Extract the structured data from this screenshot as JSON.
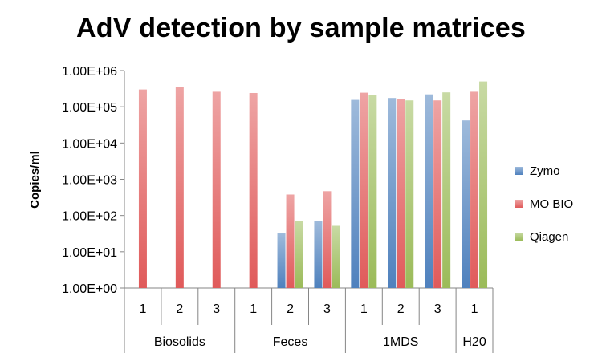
{
  "chart_data": {
    "type": "bar",
    "title": "AdV detection by sample matrices",
    "ylabel": "Copies/ml",
    "xlabel": "",
    "yscale": "log",
    "ylim": [
      1,
      1000000
    ],
    "yticks": [
      {
        "value": 1,
        "label": "1.00E+00"
      },
      {
        "value": 10,
        "label": "1.00E+01"
      },
      {
        "value": 100,
        "label": "1.00E+02"
      },
      {
        "value": 1000,
        "label": "1.00E+03"
      },
      {
        "value": 10000,
        "label": "1.00E+04"
      },
      {
        "value": 100000,
        "label": "1.00E+05"
      },
      {
        "value": 1000000,
        "label": "1.00E+06"
      }
    ],
    "groups": [
      {
        "label": "Biosolids",
        "categories": [
          "1",
          "2",
          "3"
        ]
      },
      {
        "label": "Feces",
        "categories": [
          "1",
          "2",
          "3"
        ]
      },
      {
        "label": "1MDS",
        "categories": [
          "1",
          "2",
          "3"
        ]
      },
      {
        "label": "H20",
        "categories": [
          "1"
        ]
      }
    ],
    "categories": [
      "1",
      "2",
      "3",
      "1",
      "2",
      "3",
      "1",
      "2",
      "3",
      "1"
    ],
    "series": [
      {
        "name": "Zymo",
        "color": "#4f81bd",
        "values": [
          null,
          null,
          null,
          null,
          32,
          70,
          155000,
          175000,
          220000,
          42000
        ]
      },
      {
        "name": "MO BIO",
        "color": "#e05a5a",
        "values": [
          300000,
          350000,
          260000,
          240000,
          380,
          470,
          245000,
          165000,
          150000,
          260000
        ]
      },
      {
        "name": "Qiagen",
        "color": "#9bbb59",
        "values": [
          null,
          null,
          null,
          null,
          70,
          52,
          215000,
          150000,
          250000,
          500000
        ]
      }
    ],
    "legend_position": "right",
    "grid": false
  }
}
